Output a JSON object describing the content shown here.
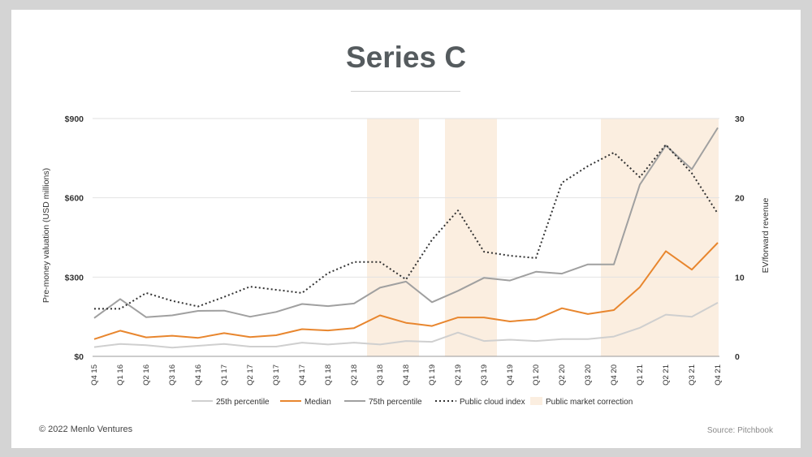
{
  "chart_data": {
    "type": "line",
    "title": "Series C",
    "ylabel": "Pre-money valuation (USD millions)",
    "y2label": "EV/forward revenue",
    "ylim": [
      0,
      900
    ],
    "y2lim": [
      0,
      30
    ],
    "yticks": [
      {
        "value": 0,
        "label": "$0"
      },
      {
        "value": 300,
        "label": "$300"
      },
      {
        "value": 600,
        "label": "$600"
      },
      {
        "value": 900,
        "label": "$900"
      }
    ],
    "y2ticks": [
      {
        "value": 0,
        "label": "0"
      },
      {
        "value": 10,
        "label": "10"
      },
      {
        "value": 20,
        "label": "20"
      },
      {
        "value": 30,
        "label": "30"
      }
    ],
    "categories": [
      "Q4 15",
      "Q1 16",
      "Q2 16",
      "Q3 16",
      "Q4 16",
      "Q1 17",
      "Q2 17",
      "Q3 17",
      "Q4 17",
      "Q1 18",
      "Q2 18",
      "Q3 18",
      "Q4 18",
      "Q1 19",
      "Q2 19",
      "Q3 19",
      "Q4 19",
      "Q1 20",
      "Q2 20",
      "Q3 20",
      "Q4 20",
      "Q1 21",
      "Q2 21",
      "Q3 21",
      "Q4 21"
    ],
    "series": [
      {
        "name": "25th percentile",
        "axis": "left",
        "color": "#cfcfcf",
        "style": "solid",
        "values": [
          35,
          47,
          42,
          33,
          40,
          47,
          37,
          37,
          52,
          45,
          52,
          45,
          58,
          55,
          90,
          58,
          63,
          58,
          65,
          65,
          75,
          108,
          158,
          150,
          203
        ]
      },
      {
        "name": "Median",
        "axis": "left",
        "color": "#e8862e",
        "style": "solid",
        "values": [
          65,
          97,
          72,
          78,
          70,
          88,
          73,
          80,
          103,
          98,
          107,
          155,
          127,
          115,
          147,
          147,
          132,
          140,
          182,
          160,
          175,
          262,
          398,
          328,
          430
        ]
      },
      {
        "name": "75th percentile",
        "axis": "left",
        "color": "#a0a0a0",
        "style": "solid",
        "values": [
          145,
          217,
          148,
          155,
          172,
          173,
          150,
          168,
          198,
          190,
          200,
          260,
          283,
          205,
          248,
          297,
          287,
          320,
          313,
          348,
          348,
          650,
          798,
          708,
          865
        ]
      },
      {
        "name": "Public cloud index",
        "axis": "right",
        "color": "#333333",
        "style": "dotted",
        "values": [
          6,
          6,
          8,
          7,
          6.3,
          7.5,
          8.8,
          8.4,
          8,
          10.5,
          11.9,
          11.9,
          9.7,
          14.7,
          18.4,
          13.2,
          12.7,
          12.4,
          21.9,
          24,
          25.7,
          22.6,
          26.7,
          23.1,
          18
        ]
      }
    ],
    "shaded_regions": {
      "name": "Public market correction",
      "color": "#fbeee0",
      "ranges": [
        [
          "Q3 18",
          "Q4 18"
        ],
        [
          "Q2 19",
          "Q3 19"
        ],
        [
          "Q4 20",
          "Q1 21"
        ],
        [
          "Q2 21",
          "Q4 21"
        ]
      ]
    },
    "legend_position": "bottom"
  },
  "footer": {
    "copyright": "© 2022 Menlo Ventures",
    "source": "Source: Pitchbook"
  }
}
